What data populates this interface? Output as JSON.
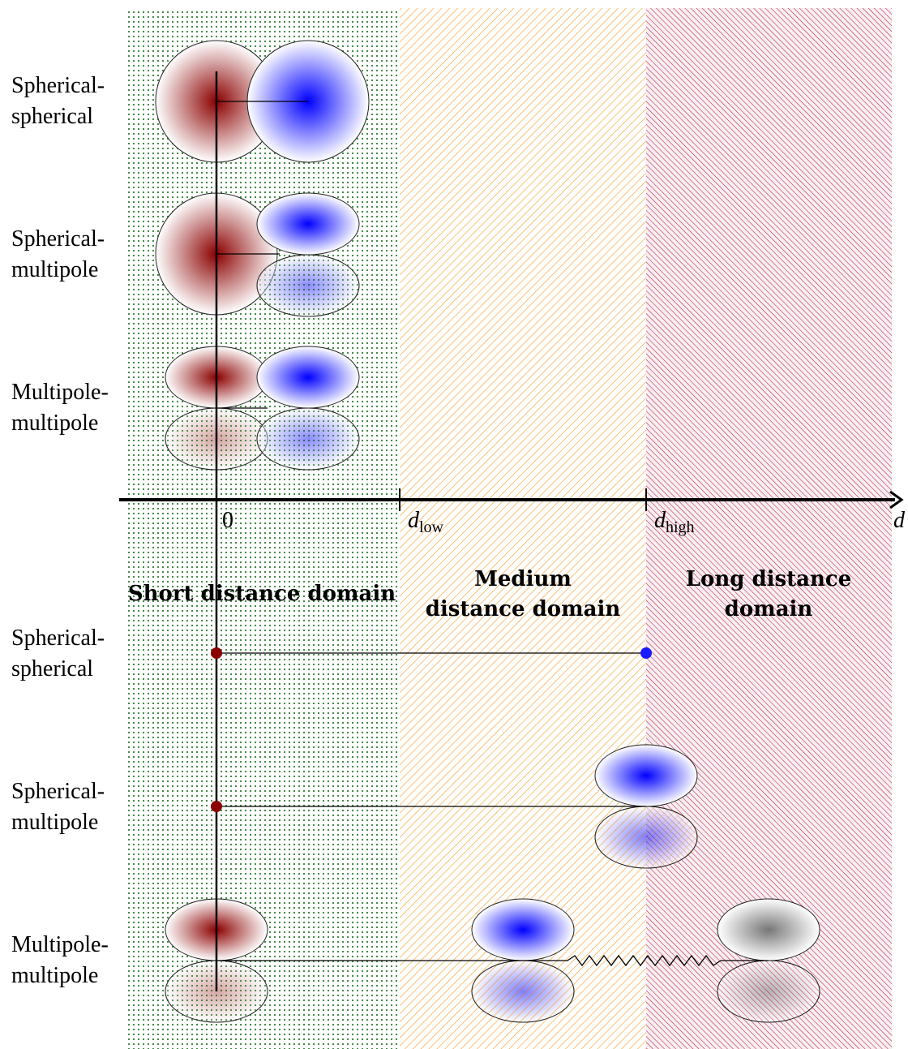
{
  "top_rows": [
    [
      "Spherical-",
      "spherical"
    ],
    [
      "Spherical-",
      "multipole"
    ],
    [
      "Multipole-",
      "multipole"
    ]
  ],
  "bottom_rows": [
    [
      "Spherical-",
      "spherical"
    ],
    [
      "Spherical-",
      "multipole"
    ],
    [
      "Multipole-",
      "multipole"
    ]
  ],
  "axis": {
    "origin": "0",
    "low": {
      "base": "d",
      "sub": "low"
    },
    "high": {
      "base": "d",
      "sub": "high"
    },
    "end": "d"
  },
  "domains": [
    [
      "Short distance domain"
    ],
    [
      "Medium",
      "distance domain"
    ],
    [
      "Long distance",
      "domain"
    ]
  ]
}
